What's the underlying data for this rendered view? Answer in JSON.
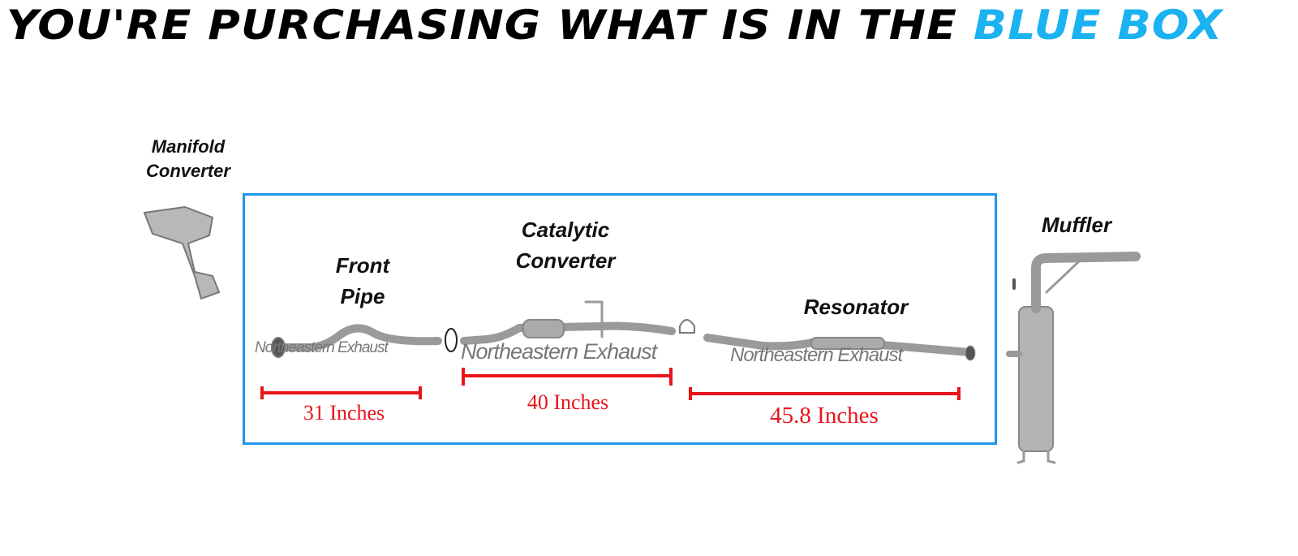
{
  "title": {
    "prefix": "YOU'RE PURCHASING WHAT IS IN THE",
    "highlight": "BLUE BOX"
  },
  "colors": {
    "highlight": "#1ab2f0",
    "box_border": "#2196e8",
    "dimension": "#e8141c",
    "pipe": "#9a9a9a"
  },
  "parts": {
    "manifold": {
      "line1": "Manifold",
      "line2": "Converter"
    },
    "front_pipe": {
      "line1": "Front",
      "line2": "Pipe",
      "length": "31 Inches"
    },
    "catalytic": {
      "line1": "Catalytic",
      "line2": "Converter",
      "length": "40 Inches"
    },
    "resonator": {
      "line1": "Resonator",
      "length": "45.8 Inches"
    },
    "muffler": {
      "line1": "Muffler"
    }
  },
  "watermark": "Northeastern Exhaust"
}
